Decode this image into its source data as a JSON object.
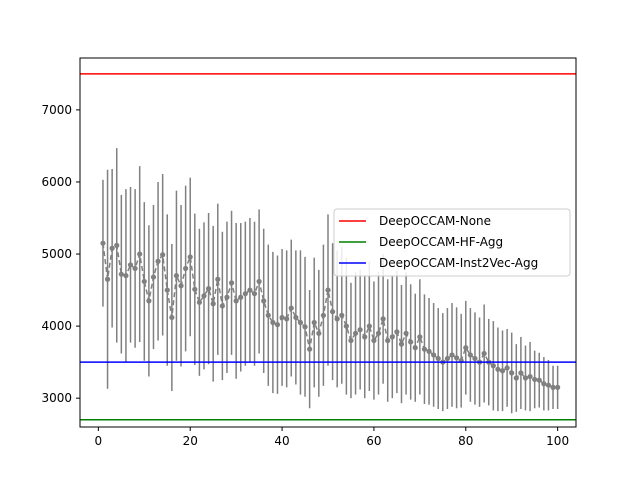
{
  "chart_data": {
    "type": "line",
    "title": "",
    "xlabel": "",
    "ylabel": "",
    "xlim": [
      -4,
      104
    ],
    "ylim": [
      2600,
      7720
    ],
    "xticks": [
      0,
      20,
      40,
      60,
      80,
      100
    ],
    "yticks": [
      3000,
      4000,
      5000,
      6000,
      7000
    ],
    "grid": false,
    "legend_placement": "center-right",
    "reference_lines": [
      {
        "name": "DeepOCCAM-None",
        "y": 7500,
        "color": "#ff0000"
      },
      {
        "name": "DeepOCCAM-HF-Agg",
        "y": 2700,
        "color": "#008000"
      },
      {
        "name": "DeepOCCAM-Inst2Vec-Agg",
        "y": 3500,
        "color": "#0000ff"
      }
    ],
    "errorbar_series": {
      "color": "#808080",
      "x": [
        1,
        2,
        3,
        4,
        5,
        6,
        7,
        8,
        9,
        10,
        11,
        12,
        13,
        14,
        15,
        16,
        17,
        18,
        19,
        20,
        21,
        22,
        23,
        24,
        25,
        26,
        27,
        28,
        29,
        30,
        31,
        32,
        33,
        34,
        35,
        36,
        37,
        38,
        39,
        40,
        41,
        42,
        43,
        44,
        45,
        46,
        47,
        48,
        49,
        50,
        51,
        52,
        53,
        54,
        55,
        56,
        57,
        58,
        59,
        60,
        61,
        62,
        63,
        64,
        65,
        66,
        67,
        68,
        69,
        70,
        71,
        72,
        73,
        74,
        75,
        76,
        77,
        78,
        79,
        80,
        81,
        82,
        83,
        84,
        85,
        86,
        87,
        88,
        89,
        90,
        91,
        92,
        93,
        94,
        95,
        96,
        97,
        98,
        99,
        100
      ],
      "y": [
        5150,
        4650,
        5080,
        5120,
        4720,
        4700,
        4850,
        4800,
        5000,
        4620,
        4350,
        4680,
        4900,
        4990,
        4500,
        4120,
        4700,
        4560,
        4800,
        4960,
        4510,
        4330,
        4420,
        4520,
        4310,
        4650,
        4280,
        4400,
        4600,
        4350,
        4400,
        4450,
        4500,
        4450,
        4620,
        4350,
        4150,
        4050,
        4020,
        4120,
        4100,
        4250,
        4120,
        4050,
        3990,
        3680,
        4050,
        3900,
        4150,
        4500,
        4200,
        4100,
        4150,
        4000,
        3800,
        3900,
        3950,
        3850,
        4000,
        3800,
        3900,
        4100,
        3800,
        3850,
        3920,
        3750,
        3900,
        3780,
        3700,
        3850,
        3680,
        3650,
        3600,
        3550,
        3500,
        3550,
        3600,
        3560,
        3520,
        3700,
        3600,
        3550,
        3500,
        3620,
        3500,
        3450,
        3400,
        3380,
        3420,
        3350,
        3280,
        3350,
        3280,
        3300,
        3260,
        3250,
        3200,
        3180,
        3150,
        3150
      ],
      "err": [
        880,
        1520,
        1100,
        1350,
        1100,
        1200,
        1080,
        1100,
        1220,
        1100,
        1050,
        1000,
        1100,
        1120,
        1050,
        1020,
        1180,
        1120,
        1150,
        1100,
        1050,
        1020,
        1020,
        1050,
        1080,
        1050,
        1030,
        1050,
        1000,
        1080,
        1030,
        1000,
        1000,
        1000,
        1000,
        1000,
        980,
        980,
        960,
        950,
        950,
        950,
        930,
        1000,
        970,
        820,
        900,
        880,
        980,
        1050,
        950,
        950,
        950,
        950,
        800,
        850,
        830,
        850,
        900,
        820,
        850,
        900,
        850,
        850,
        850,
        820,
        850,
        800,
        750,
        800,
        760,
        740,
        720,
        700,
        680,
        700,
        720,
        700,
        650,
        650,
        650,
        640,
        620,
        680,
        600,
        620,
        580,
        560,
        540,
        560,
        470,
        500,
        450,
        480,
        400,
        380,
        370,
        350,
        300,
        300
      ]
    }
  }
}
